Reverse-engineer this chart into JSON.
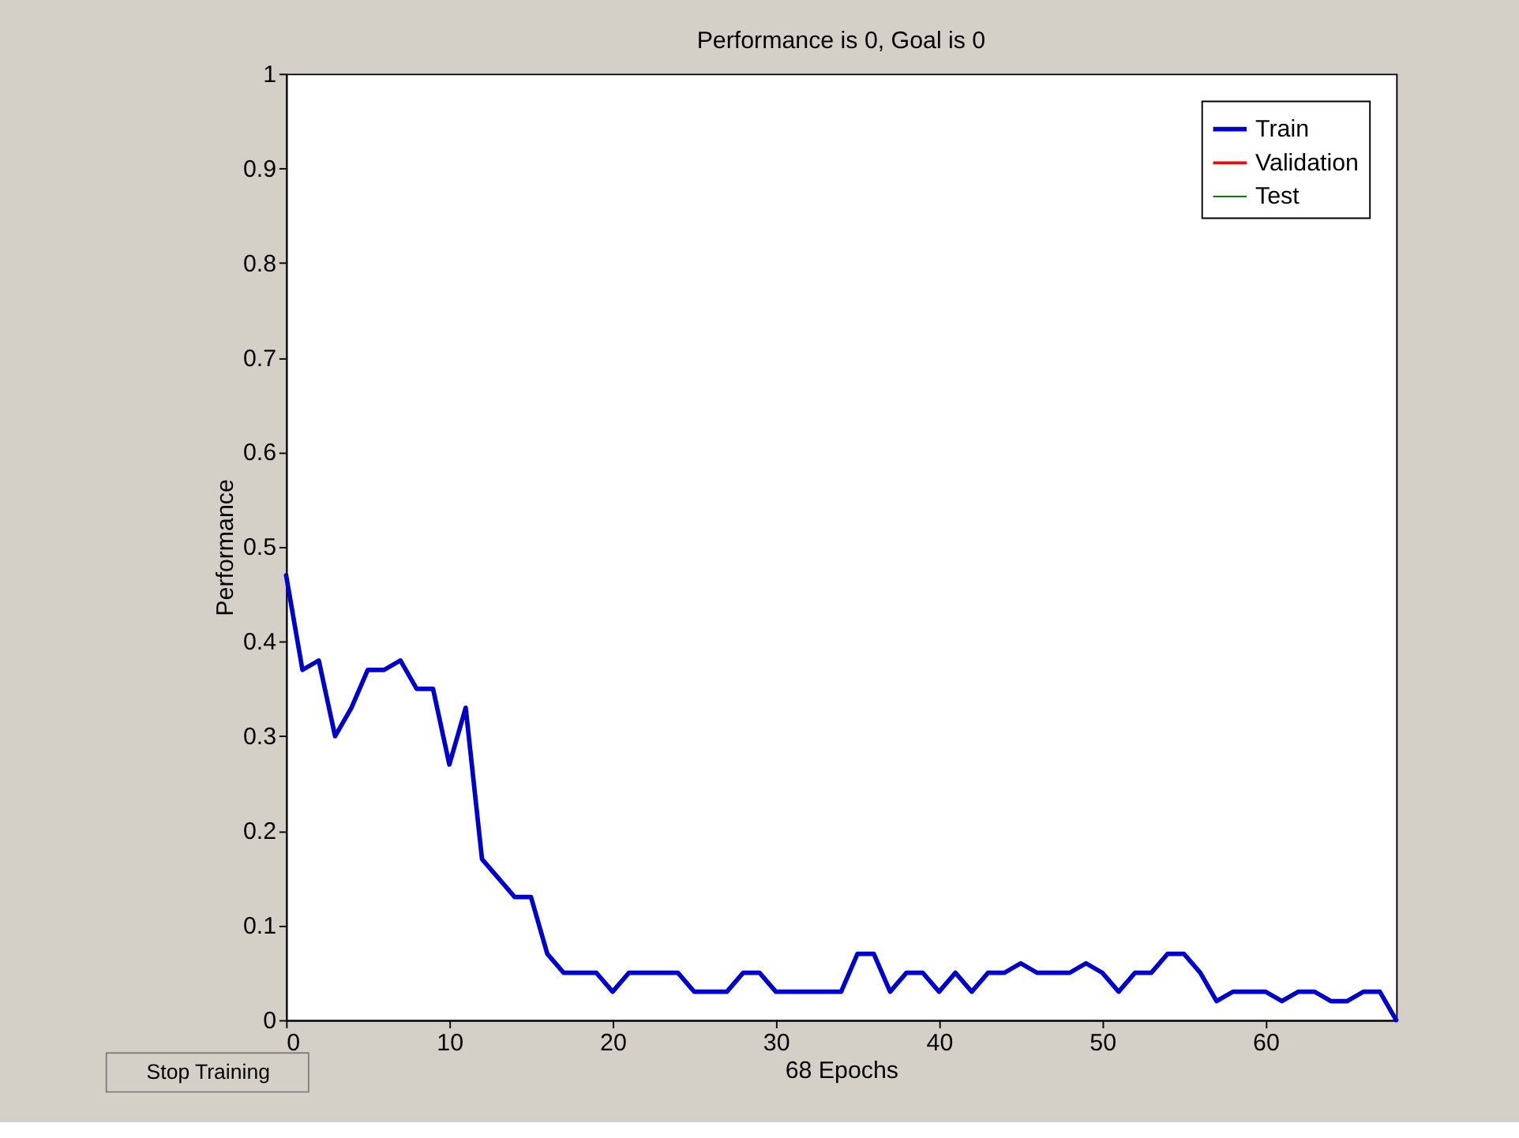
{
  "chart_data": {
    "type": "line",
    "title": "Performance is 0, Goal is 0",
    "xlabel": "68 Epochs",
    "ylabel": "Performance",
    "x": [
      0,
      1,
      2,
      3,
      4,
      5,
      6,
      7,
      8,
      9,
      10,
      11,
      12,
      13,
      14,
      15,
      16,
      17,
      18,
      19,
      20,
      21,
      22,
      23,
      24,
      25,
      26,
      27,
      28,
      29,
      30,
      31,
      32,
      33,
      34,
      35,
      36,
      37,
      38,
      39,
      40,
      41,
      42,
      43,
      44,
      45,
      46,
      47,
      48,
      49,
      50,
      51,
      52,
      53,
      54,
      55,
      56,
      57,
      58,
      59,
      60,
      61,
      62,
      63,
      64,
      65,
      66,
      67,
      68
    ],
    "series": [
      {
        "name": "Train",
        "color": "#0000cc",
        "values": [
          0.47,
          0.37,
          0.38,
          0.3,
          0.33,
          0.37,
          0.37,
          0.38,
          0.35,
          0.35,
          0.27,
          0.33,
          0.17,
          0.15,
          0.13,
          0.13,
          0.07,
          0.05,
          0.05,
          0.05,
          0.03,
          0.05,
          0.05,
          0.05,
          0.05,
          0.03,
          0.03,
          0.03,
          0.05,
          0.05,
          0.03,
          0.03,
          0.03,
          0.03,
          0.03,
          0.07,
          0.07,
          0.03,
          0.05,
          0.05,
          0.03,
          0.05,
          0.03,
          0.05,
          0.05,
          0.06,
          0.05,
          0.05,
          0.05,
          0.06,
          0.05,
          0.03,
          0.05,
          0.05,
          0.07,
          0.07,
          0.05,
          0.02,
          0.03,
          0.03,
          0.03,
          0.02,
          0.03,
          0.03,
          0.02,
          0.02,
          0.03,
          0.03,
          0
        ]
      },
      {
        "name": "Validation",
        "color": "#ff0000",
        "values": [
          null,
          null,
          null,
          null,
          null,
          null,
          null,
          null,
          null,
          null,
          null,
          null,
          null,
          null,
          null,
          null,
          null,
          null,
          null,
          null,
          null,
          null,
          null,
          null,
          null,
          null,
          null,
          null,
          null,
          null,
          null,
          null,
          null,
          null,
          null,
          null,
          null,
          null,
          null,
          null,
          null,
          null,
          null,
          null,
          null,
          null,
          null,
          null,
          null,
          null,
          null,
          null,
          null,
          null,
          null,
          null,
          null,
          null,
          null,
          null,
          null,
          null,
          null,
          null,
          null,
          null,
          null,
          null,
          null
        ]
      },
      {
        "name": "Test",
        "color": "#008000",
        "values": [
          null,
          null,
          null,
          null,
          null,
          null,
          null,
          null,
          null,
          null,
          null,
          null,
          null,
          null,
          null,
          null,
          null,
          null,
          null,
          null,
          null,
          null,
          null,
          null,
          null,
          null,
          null,
          null,
          null,
          null,
          null,
          null,
          null,
          null,
          null,
          null,
          null,
          null,
          null,
          null,
          null,
          null,
          null,
          null,
          null,
          null,
          null,
          null,
          null,
          null,
          null,
          null,
          null,
          null,
          null,
          null,
          null,
          null,
          null,
          null,
          null,
          null,
          null,
          null,
          null,
          null,
          null,
          null,
          null
        ]
      }
    ],
    "xlim": [
      0,
      68
    ],
    "xticks": [
      0,
      10,
      20,
      30,
      40,
      50,
      60
    ],
    "ylim": [
      0,
      1
    ],
    "yticks": [
      0,
      0.1,
      0.2,
      0.3,
      0.4,
      0.5,
      0.6,
      0.7,
      0.8,
      0.9,
      1
    ],
    "legend": "top right",
    "grid": false,
    "annotations": [
      "Stop Training"
    ]
  }
}
